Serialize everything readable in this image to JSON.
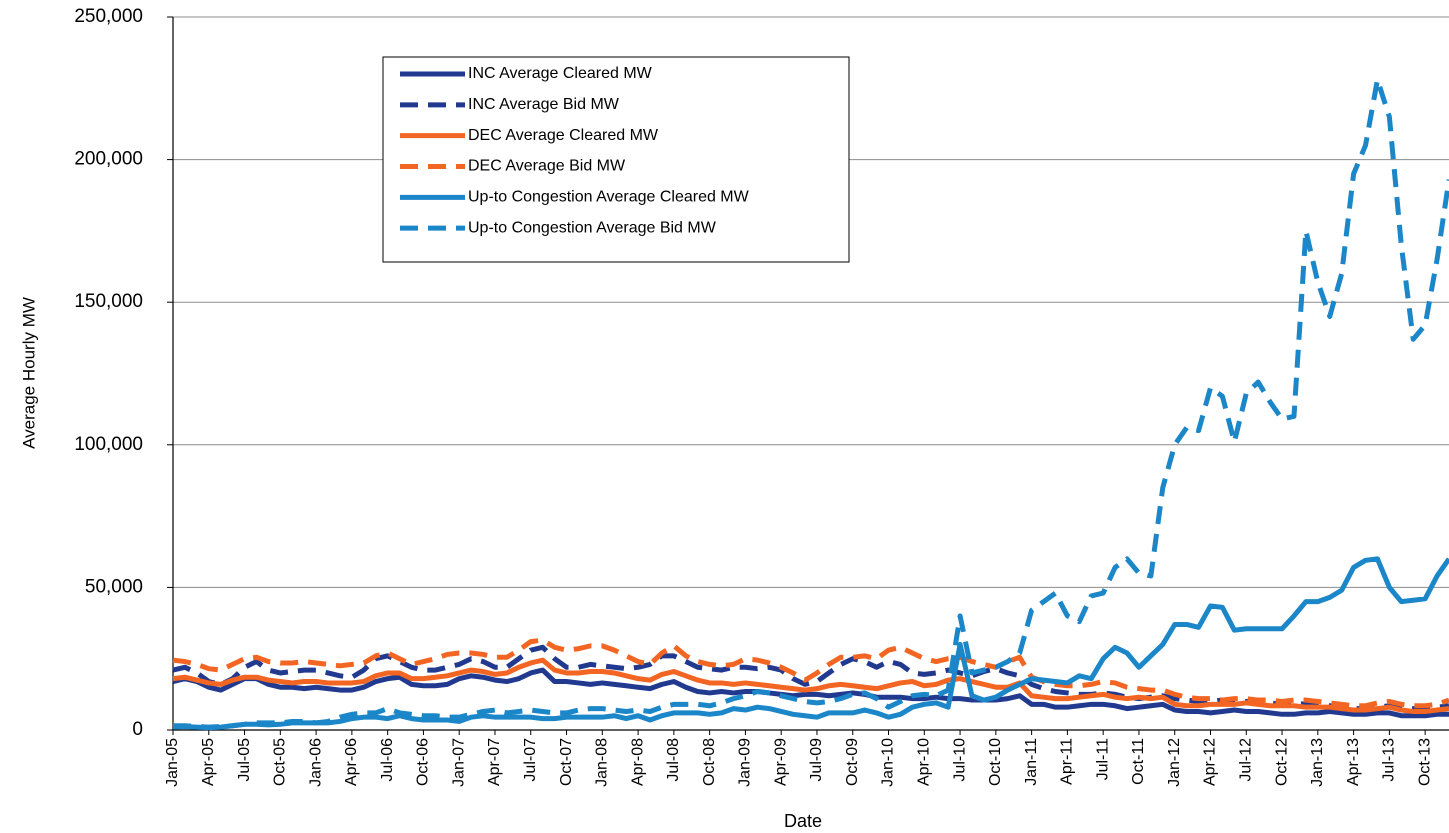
{
  "chart_data": {
    "type": "line",
    "xlabel": "Date",
    "ylabel": "Average Hourly MW",
    "ylim": [
      0,
      250000
    ],
    "yticks": [
      0,
      {
        "value": 50000,
        "label": "50,000"
      },
      {
        "value": 100000,
        "label": "100,000"
      },
      {
        "value": 150000,
        "label": "150,000"
      },
      {
        "value": 200000,
        "label": "200,000"
      },
      {
        "value": 250000,
        "label": "250,000"
      }
    ],
    "grid": true,
    "legend": "upper left",
    "categories": [
      "Jan-05",
      null,
      null,
      "Apr-05",
      null,
      null,
      "Jul-05",
      null,
      null,
      "Oct-05",
      null,
      null,
      "Jan-06",
      null,
      null,
      "Apr-06",
      null,
      null,
      "Jul-06",
      null,
      null,
      "Oct-06",
      null,
      null,
      "Jan-07",
      null,
      null,
      "Apr-07",
      null,
      null,
      "Jul-07",
      null,
      null,
      "Oct-07",
      null,
      null,
      "Jan-08",
      null,
      null,
      "Apr-08",
      null,
      null,
      "Jul-08",
      null,
      null,
      "Oct-08",
      null,
      null,
      "Jan-09",
      null,
      null,
      "Apr-09",
      null,
      null,
      "Jul-09",
      null,
      null,
      "Oct-09",
      null,
      null,
      "Jan-10",
      null,
      null,
      "Apr-10",
      null,
      null,
      "Jul-10",
      null,
      null,
      "Oct-10",
      null,
      null,
      "Jan-11",
      null,
      null,
      "Apr-11",
      null,
      null,
      "Jul-11",
      null,
      null,
      "Oct-11",
      null,
      null,
      "Jan-12",
      null,
      null,
      "Apr-12",
      null,
      null,
      "Jul-12",
      null,
      null,
      "Oct-12",
      null,
      null,
      "Jan-13",
      null,
      null,
      "Apr-13",
      null,
      null,
      "Jul-13",
      null,
      null,
      "Oct-13",
      null,
      null
    ],
    "series": [
      {
        "name": "INC Average Cleared MW",
        "color": "#213a8f",
        "dashed": false,
        "values": [
          17000,
          18000,
          17000,
          15000,
          14000,
          16000,
          18000,
          18000,
          16000,
          15000,
          15000,
          14500,
          15000,
          14500,
          14000,
          14000,
          15000,
          17000,
          18000,
          18500,
          16000,
          15500,
          15500,
          16000,
          18000,
          19000,
          18500,
          17500,
          17000,
          18000,
          20000,
          21000,
          17000,
          17000,
          16500,
          16000,
          16500,
          16000,
          15500,
          15000,
          14500,
          16000,
          17000,
          15000,
          13500,
          13000,
          13500,
          13000,
          13500,
          13500,
          13000,
          12500,
          12000,
          12500,
          12500,
          12000,
          12500,
          13000,
          12500,
          11500,
          11500,
          11500,
          11000,
          11000,
          11500,
          11000,
          11000,
          10500,
          10500,
          10500,
          11000,
          12000,
          9000,
          9000,
          8000,
          8000,
          8500,
          9000,
          9000,
          8500,
          7500,
          8000,
          8500,
          9000,
          7000,
          6500,
          6500,
          6000,
          6500,
          7000,
          6500,
          6500,
          6000,
          5500,
          5500,
          6000,
          6000,
          6500,
          6000,
          5500,
          5500,
          6000,
          6000,
          5000,
          5000,
          5000,
          5500,
          5500
        ]
      },
      {
        "name": "INC Average Bid MW",
        "color": "#213a8f",
        "dashed": true,
        "values": [
          21000,
          22000,
          20000,
          17000,
          16000,
          18000,
          22000,
          24000,
          21000,
          20000,
          20500,
          21000,
          21000,
          20000,
          19000,
          18500,
          21000,
          25000,
          26000,
          24000,
          22000,
          21000,
          21000,
          22000,
          23000,
          25000,
          24000,
          22000,
          22000,
          25000,
          28000,
          29000,
          25000,
          22000,
          22000,
          23000,
          22500,
          22000,
          21500,
          22000,
          23000,
          26000,
          26000,
          24000,
          22000,
          21500,
          21000,
          22000,
          22000,
          21500,
          22000,
          21000,
          18000,
          16000,
          17000,
          20000,
          23000,
          25000,
          24000,
          22000,
          24000,
          23000,
          20000,
          19500,
          20000,
          21000,
          20000,
          19000,
          20500,
          21500,
          20000,
          19000,
          16000,
          14500,
          13500,
          13000,
          12500,
          12500,
          13000,
          12500,
          11500,
          11000,
          11500,
          12000,
          11000,
          10500,
          10000,
          10000,
          10500,
          10000,
          10000,
          9500,
          9500,
          9000,
          9500,
          9000,
          9000,
          8500,
          8000,
          7500,
          7500,
          8000,
          8500,
          7500,
          7500,
          7500,
          8000,
          8500
        ]
      },
      {
        "name": "DEC Average Cleared MW",
        "color": "#f26522",
        "dashed": false,
        "values": [
          18000,
          18500,
          17500,
          16500,
          16000,
          17500,
          18500,
          18500,
          17500,
          17000,
          16500,
          17000,
          17000,
          16500,
          16500,
          16500,
          17000,
          19000,
          20000,
          20000,
          18000,
          18000,
          18500,
          19000,
          20000,
          21000,
          20500,
          19500,
          20000,
          22000,
          23500,
          24500,
          21000,
          20000,
          20000,
          20500,
          20500,
          20000,
          19000,
          18000,
          17500,
          19500,
          20500,
          19000,
          17500,
          16500,
          16500,
          16000,
          16500,
          16000,
          15500,
          15000,
          14500,
          14000,
          14500,
          15500,
          16000,
          15500,
          15000,
          14500,
          15500,
          16500,
          17000,
          15500,
          16000,
          17500,
          18000,
          17000,
          16000,
          15000,
          15000,
          16500,
          12000,
          11500,
          11000,
          11000,
          11500,
          12000,
          12500,
          11500,
          11000,
          11500,
          11000,
          11500,
          9000,
          8500,
          8500,
          9000,
          9000,
          9000,
          9500,
          9000,
          8500,
          8500,
          8500,
          8000,
          8000,
          8000,
          7500,
          7000,
          7000,
          7500,
          8000,
          7000,
          6500,
          6500,
          7000,
          7500
        ]
      },
      {
        "name": "DEC Average Bid MW",
        "color": "#f26522",
        "dashed": true,
        "values": [
          24500,
          24000,
          23000,
          21500,
          21000,
          23000,
          25000,
          25500,
          24000,
          23500,
          23500,
          24000,
          23500,
          23000,
          22500,
          23000,
          23500,
          26000,
          27000,
          25000,
          23000,
          24000,
          25000,
          26500,
          27000,
          27000,
          26500,
          25500,
          25500,
          28000,
          31000,
          31500,
          29000,
          28000,
          28500,
          29500,
          29500,
          28000,
          26000,
          24000,
          23000,
          27000,
          29500,
          26000,
          24000,
          23000,
          22500,
          23000,
          25000,
          24500,
          23500,
          22000,
          20000,
          17500,
          20000,
          23000,
          25500,
          25500,
          26000,
          25000,
          28000,
          29000,
          27000,
          25000,
          24000,
          25000,
          25500,
          24000,
          23000,
          22000,
          24000,
          25500,
          18500,
          17000,
          16000,
          15500,
          15500,
          16000,
          17000,
          16500,
          15000,
          14500,
          14000,
          14000,
          12500,
          11500,
          11000,
          11000,
          10500,
          11000,
          11000,
          10500,
          10500,
          10000,
          10500,
          10500,
          10000,
          9500,
          9000,
          8500,
          8500,
          9500,
          10000,
          9000,
          8500,
          8500,
          9000,
          10500
        ]
      },
      {
        "name": "Up-to Congestion Average Cleared MW",
        "color": "#1b86c8",
        "dashed": false,
        "values": [
          1000,
          1200,
          1000,
          800,
          1000,
          1500,
          2000,
          2000,
          1800,
          2000,
          2500,
          2500,
          2500,
          2500,
          3000,
          4000,
          4500,
          4500,
          4000,
          5000,
          4000,
          3500,
          3500,
          3500,
          3000,
          4500,
          5000,
          4500,
          4500,
          4500,
          4500,
          4000,
          4000,
          4500,
          4500,
          4500,
          4500,
          5000,
          4000,
          5000,
          3500,
          5000,
          6000,
          6000,
          6000,
          5500,
          6000,
          7500,
          7000,
          8000,
          7500,
          6500,
          5500,
          5000,
          4500,
          6000,
          6000,
          6000,
          7000,
          6000,
          4500,
          5500,
          8000,
          9000,
          9500,
          8000,
          30000,
          12000,
          10500,
          11500,
          14000,
          16000,
          18000,
          17500,
          17000,
          16500,
          19000,
          18000,
          25000,
          29000,
          27000,
          22000,
          26000,
          30000,
          37000,
          37000,
          36000,
          43500,
          43000,
          35000,
          35500,
          35500,
          35500,
          35500,
          40000,
          45000,
          45000,
          46500,
          49000,
          57000,
          59500,
          60000,
          50000,
          45000,
          45500,
          46000,
          54000,
          60000
        ]
      },
      {
        "name": "Up-to Congestion Average Bid MW",
        "color": "#1b86c8",
        "dashed": true,
        "values": [
          1500,
          1500,
          1200,
          1000,
          1200,
          1500,
          2000,
          2500,
          2500,
          2500,
          3000,
          3000,
          2500,
          3000,
          4500,
          5500,
          6000,
          6000,
          7500,
          6000,
          5500,
          5000,
          5000,
          4500,
          4500,
          5500,
          6500,
          7000,
          6000,
          6500,
          7000,
          6500,
          6000,
          6000,
          7000,
          7500,
          7500,
          7000,
          6500,
          7000,
          6500,
          8000,
          9000,
          9000,
          9000,
          8500,
          9500,
          11000,
          12000,
          13500,
          13000,
          12000,
          11000,
          10000,
          9500,
          10000,
          11000,
          12500,
          13000,
          11000,
          8000,
          10000,
          12000,
          12500,
          12000,
          14000,
          40000,
          20000,
          21000,
          22000,
          24000,
          27000,
          42000,
          45000,
          48000,
          40000,
          38000,
          47000,
          48000,
          57000,
          60000,
          55000,
          54000,
          85000,
          100000,
          106000,
          105000,
          120000,
          117000,
          101000,
          118000,
          122000,
          115000,
          109000,
          110000,
          175000,
          157000,
          145000,
          160000,
          195000,
          205000,
          228000,
          215000,
          170000,
          137000,
          142000,
          165000,
          193000
        ]
      }
    ]
  }
}
